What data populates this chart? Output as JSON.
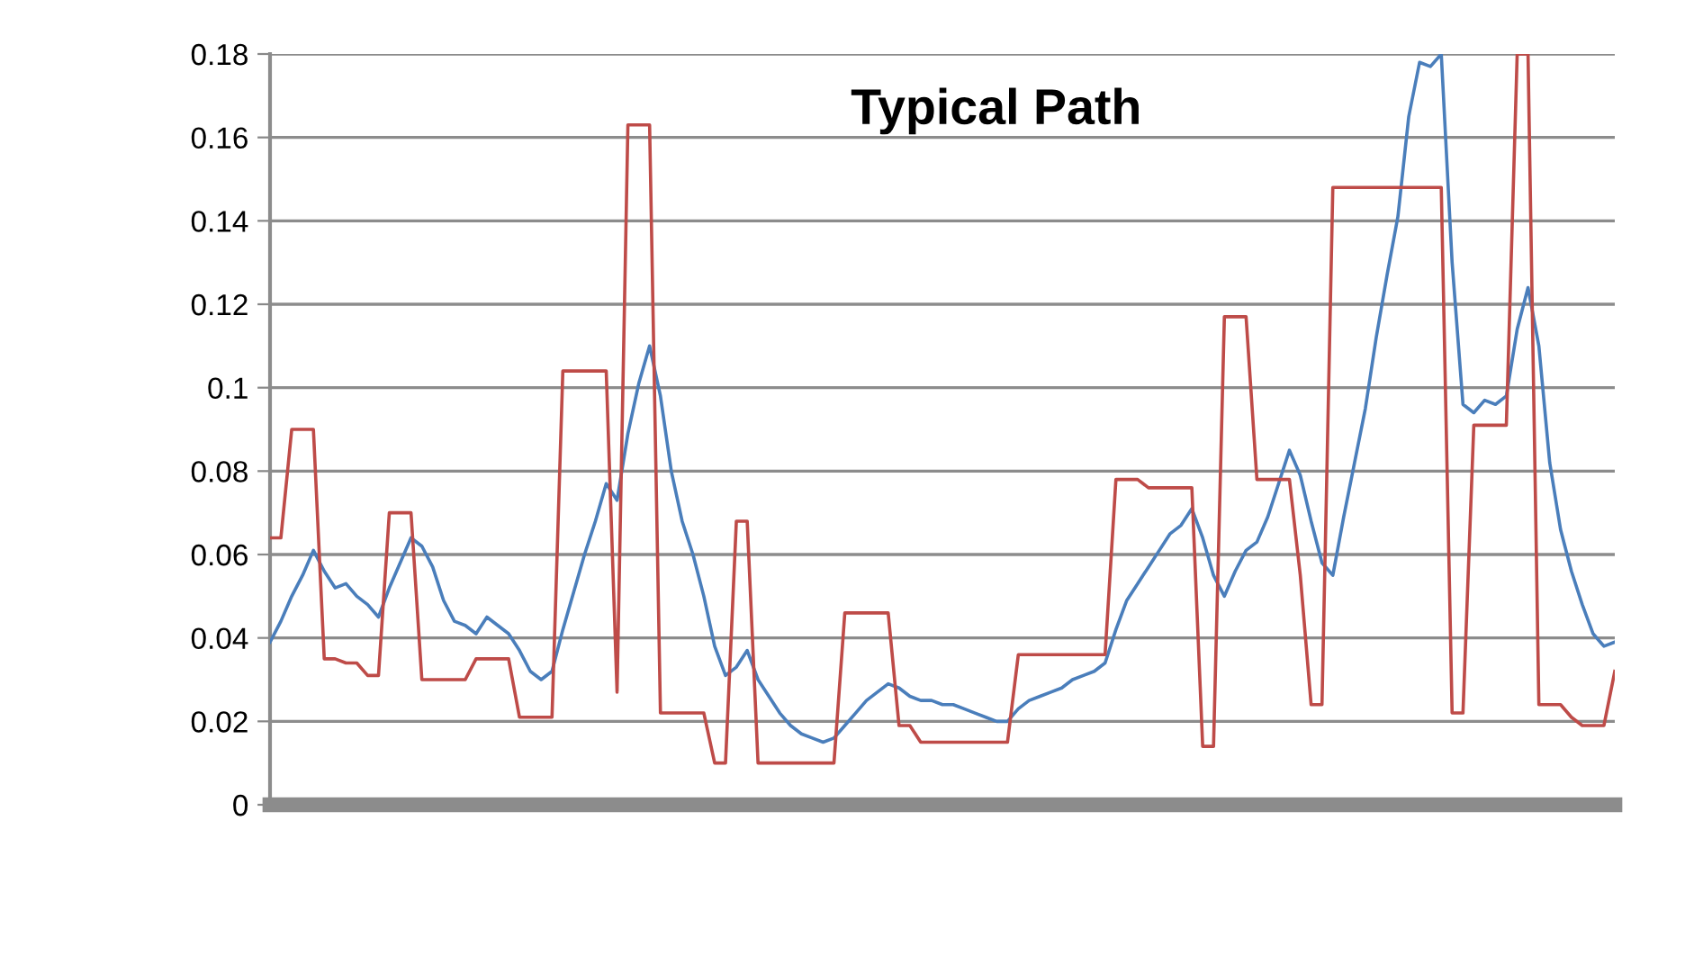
{
  "chart_data": {
    "type": "line",
    "title": "Typical Path",
    "categories": [
      null,
      null,
      null,
      null,
      null,
      null,
      null,
      null,
      null,
      null,
      null,
      null,
      null,
      null,
      null,
      null,
      null,
      null,
      null,
      null,
      null,
      null,
      null,
      null,
      null,
      null,
      null,
      null,
      null,
      null,
      null,
      null,
      null,
      null,
      null,
      null,
      null,
      null,
      null,
      null,
      null,
      null,
      null,
      null,
      null,
      null,
      null,
      null,
      null,
      null,
      null,
      null,
      null,
      null,
      null,
      null,
      null,
      null,
      null,
      null,
      null,
      null,
      null,
      null,
      null,
      null,
      null,
      null,
      null,
      null,
      null,
      null,
      null,
      null,
      null,
      null,
      null,
      null,
      null,
      null,
      null,
      null,
      null,
      null,
      null,
      null,
      null,
      null,
      null,
      null,
      null,
      null,
      null,
      null,
      null,
      null,
      null,
      null,
      null,
      null,
      null,
      null,
      null,
      null,
      null,
      null,
      null,
      null,
      null,
      null,
      null,
      null,
      null,
      null,
      null,
      null,
      null,
      null,
      null,
      null,
      null,
      null,
      null,
      null,
      null
    ],
    "series": [
      {
        "color": "#4a7ebb",
        "values": [
          0.039,
          0.044,
          0.05,
          0.055,
          0.061,
          0.056,
          0.052,
          0.053,
          0.05,
          0.048,
          0.045,
          0.052,
          0.058,
          0.064,
          0.062,
          0.057,
          0.049,
          0.044,
          0.043,
          0.041,
          0.045,
          0.043,
          0.041,
          0.037,
          0.032,
          0.03,
          0.032,
          0.042,
          0.051,
          0.06,
          0.068,
          0.077,
          0.073,
          0.089,
          0.101,
          0.11,
          0.098,
          0.08,
          0.068,
          0.06,
          0.05,
          0.038,
          0.031,
          0.033,
          0.037,
          0.03,
          0.026,
          0.022,
          0.019,
          0.017,
          0.016,
          0.015,
          0.016,
          0.019,
          0.022,
          0.025,
          0.027,
          0.029,
          0.028,
          0.026,
          0.025,
          0.025,
          0.024,
          0.024,
          0.023,
          0.022,
          0.021,
          0.02,
          0.02,
          0.023,
          0.025,
          0.026,
          0.027,
          0.028,
          0.03,
          0.031,
          0.032,
          0.034,
          0.042,
          0.049,
          0.053,
          0.057,
          0.061,
          0.065,
          0.067,
          0.071,
          0.064,
          0.055,
          0.05,
          0.056,
          0.061,
          0.063,
          0.069,
          0.077,
          0.085,
          0.079,
          0.068,
          0.058,
          0.055,
          0.069,
          0.082,
          0.095,
          0.112,
          0.127,
          0.141,
          0.165,
          0.178,
          0.177,
          0.18,
          0.13,
          0.096,
          0.094,
          0.097,
          0.096,
          0.098,
          0.114,
          0.124,
          0.11,
          0.082,
          0.066,
          0.056,
          0.048,
          0.041,
          0.038,
          0.039
        ]
      },
      {
        "color": "#be4b48",
        "values": [
          0.064,
          0.064,
          0.09,
          0.09,
          0.09,
          0.035,
          0.035,
          0.034,
          0.034,
          0.031,
          0.031,
          0.07,
          0.07,
          0.07,
          0.03,
          0.03,
          0.03,
          0.03,
          0.03,
          0.035,
          0.035,
          0.035,
          0.035,
          0.021,
          0.021,
          0.021,
          0.021,
          0.104,
          0.104,
          0.104,
          0.104,
          0.104,
          0.027,
          0.163,
          0.163,
          0.163,
          0.022,
          0.022,
          0.022,
          0.022,
          0.022,
          0.01,
          0.01,
          0.068,
          0.068,
          0.01,
          0.01,
          0.01,
          0.01,
          0.01,
          0.01,
          0.01,
          0.01,
          0.046,
          0.046,
          0.046,
          0.046,
          0.046,
          0.019,
          0.019,
          0.015,
          0.015,
          0.015,
          0.015,
          0.015,
          0.015,
          0.015,
          0.015,
          0.015,
          0.036,
          0.036,
          0.036,
          0.036,
          0.036,
          0.036,
          0.036,
          0.036,
          0.036,
          0.078,
          0.078,
          0.078,
          0.076,
          0.076,
          0.076,
          0.076,
          0.076,
          0.014,
          0.014,
          0.117,
          0.117,
          0.117,
          0.078,
          0.078,
          0.078,
          0.078,
          0.055,
          0.024,
          0.024,
          0.148,
          0.148,
          0.148,
          0.148,
          0.148,
          0.148,
          0.148,
          0.148,
          0.148,
          0.148,
          0.148,
          0.022,
          0.022,
          0.091,
          0.091,
          0.091,
          0.091,
          0.18,
          0.18,
          0.024,
          0.024,
          0.024,
          0.021,
          0.019,
          0.019,
          0.019,
          0.032
        ]
      }
    ],
    "ylim": [
      0,
      0.18
    ],
    "yticks": [
      0,
      0.02,
      0.04,
      0.06,
      0.08,
      0.1,
      0.12,
      0.14,
      0.16,
      0.18
    ],
    "grid": "y",
    "tick_labels": "y",
    "marker": "none",
    "line_style": "solid"
  }
}
